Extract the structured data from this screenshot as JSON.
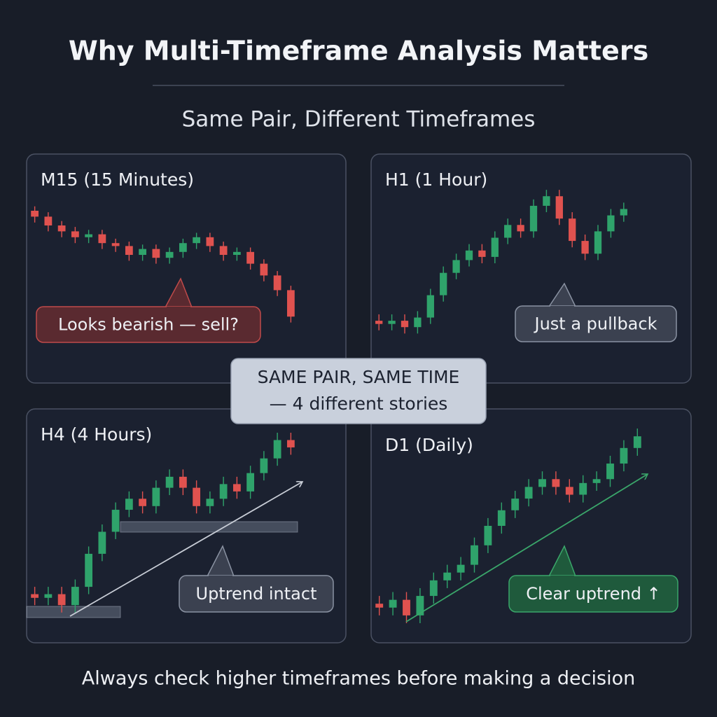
{
  "header": {
    "title": "Why Multi-Timeframe Analysis Matters",
    "subtitle": "Same Pair, Different Timeframes"
  },
  "center_note": [
    "SAME PAIR, SAME TIME",
    "— 4 different stories"
  ],
  "footer": "Always check higher timeframes before making a decision",
  "chart_data": [
    {
      "type": "candlestick",
      "title": "M15 (15 Minutes)",
      "annotation": "Looks bearish — sell?",
      "up_color": "#2fa36b",
      "down_color": "#e0524f",
      "ylim": [
        0,
        100
      ],
      "open": [
        90,
        86,
        80,
        76,
        72,
        74,
        68,
        66,
        60,
        64,
        58,
        62,
        68,
        72,
        66,
        60,
        62,
        54,
        46,
        36
      ],
      "high": [
        93,
        89,
        83,
        79,
        77,
        77,
        71,
        69,
        67,
        67,
        65,
        71,
        75,
        75,
        69,
        65,
        65,
        57,
        49,
        39
      ],
      "low": [
        82,
        76,
        72,
        68,
        68,
        64,
        62,
        56,
        56,
        54,
        54,
        58,
        64,
        62,
        56,
        56,
        50,
        42,
        32,
        14
      ],
      "close": [
        86,
        80,
        76,
        72,
        74,
        68,
        66,
        60,
        64,
        58,
        62,
        68,
        72,
        66,
        60,
        62,
        54,
        46,
        36,
        18
      ]
    },
    {
      "type": "candlestick",
      "title": "H1 (1 Hour)",
      "annotation": "Just a pullback",
      "up_color": "#2fa36b",
      "down_color": "#e0524f",
      "ylim": [
        0,
        100
      ],
      "open": [
        14,
        12,
        14,
        10,
        16,
        30,
        44,
        52,
        58,
        54,
        66,
        74,
        70,
        86,
        92,
        78,
        64,
        56,
        70,
        80
      ],
      "high": [
        18,
        18,
        18,
        20,
        34,
        48,
        56,
        62,
        62,
        70,
        78,
        78,
        90,
        96,
        96,
        82,
        68,
        74,
        84,
        88
      ],
      "low": [
        8,
        8,
        6,
        6,
        12,
        26,
        40,
        48,
        50,
        50,
        62,
        66,
        66,
        82,
        74,
        60,
        52,
        52,
        66,
        76
      ],
      "close": [
        12,
        14,
        10,
        16,
        30,
        44,
        52,
        58,
        54,
        66,
        74,
        70,
        86,
        92,
        78,
        64,
        56,
        70,
        80,
        84
      ]
    },
    {
      "type": "candlestick",
      "title": "H4 (4 Hours)",
      "annotation": "Uptrend intact",
      "up_color": "#2fa36b",
      "down_color": "#e0524f",
      "ylim": [
        0,
        100
      ],
      "open": [
        12,
        10,
        12,
        6,
        16,
        34,
        46,
        58,
        64,
        60,
        70,
        76,
        70,
        60,
        64,
        72,
        68,
        78,
        86,
        96
      ],
      "high": [
        16,
        16,
        16,
        20,
        38,
        50,
        62,
        68,
        68,
        74,
        80,
        80,
        74,
        68,
        76,
        76,
        82,
        90,
        100,
        100
      ],
      "low": [
        6,
        6,
        2,
        2,
        12,
        30,
        42,
        54,
        56,
        56,
        66,
        66,
        56,
        56,
        60,
        64,
        64,
        74,
        82,
        88
      ],
      "close": [
        10,
        12,
        6,
        16,
        34,
        46,
        58,
        64,
        60,
        70,
        76,
        70,
        60,
        64,
        72,
        68,
        78,
        86,
        96,
        92
      ]
    },
    {
      "type": "candlestick",
      "title": "D1 (Daily)",
      "annotation": "Clear uptrend ↑",
      "up_color": "#2fa36b",
      "down_color": "#e0524f",
      "ylim": [
        0,
        100
      ],
      "open": [
        10,
        8,
        12,
        4,
        14,
        22,
        26,
        30,
        40,
        50,
        58,
        64,
        70,
        74,
        70,
        66,
        72,
        74,
        82,
        90
      ],
      "high": [
        14,
        16,
        16,
        18,
        26,
        30,
        34,
        44,
        54,
        62,
        68,
        74,
        78,
        78,
        74,
        76,
        78,
        86,
        94,
        100
      ],
      "low": [
        4,
        4,
        0,
        0,
        10,
        18,
        22,
        26,
        36,
        46,
        54,
        60,
        66,
        66,
        62,
        62,
        68,
        70,
        78,
        86
      ],
      "close": [
        8,
        12,
        4,
        14,
        22,
        26,
        30,
        40,
        50,
        58,
        64,
        70,
        74,
        70,
        66,
        72,
        74,
        82,
        90,
        96
      ]
    }
  ]
}
